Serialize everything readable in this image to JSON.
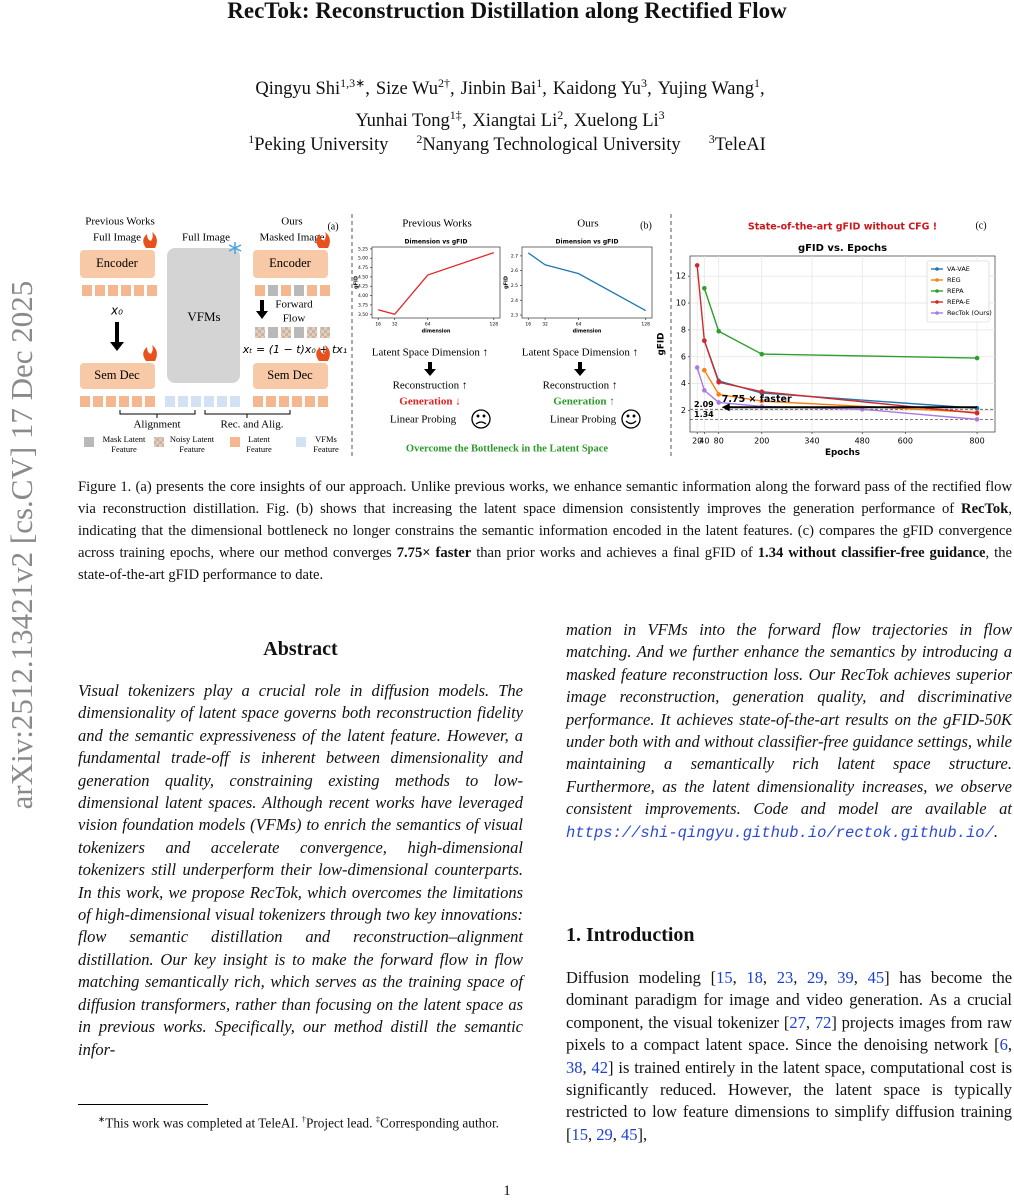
{
  "side_stamp": "arXiv:2512.13421v2  [cs.CV]  17 Dec 2025",
  "header": {
    "title": "RecTok: Reconstruction Distillation along Rectified Flow",
    "author_lines": [
      [
        {
          "name": "Qingyu Shi",
          "sup": "1,3∗",
          "after": ","
        },
        {
          "name": "Size Wu",
          "sup": "2†",
          "after": ","
        },
        {
          "name": "Jinbin Bai",
          "sup": "1",
          "after": ","
        },
        {
          "name": "Kaidong Yu",
          "sup": "3",
          "after": ","
        },
        {
          "name": "Yujing Wang",
          "sup": "1",
          "after": ","
        }
      ],
      [
        {
          "name": "Yunhai Tong",
          "sup": "1‡",
          "after": ","
        },
        {
          "name": "Xiangtai Li",
          "sup": "2",
          "after": ","
        },
        {
          "name": "Xuelong Li",
          "sup": "3"
        }
      ]
    ],
    "affiliations": [
      {
        "sup": "1",
        "name": "Peking University"
      },
      {
        "sup": "2",
        "name": "Nanyang Technological University"
      },
      {
        "sup": "3",
        "name": "TeleAI"
      }
    ]
  },
  "figure": {
    "panel_a": {
      "tag": "(a)",
      "prev_title": "Previous Works",
      "prev_input": "Full Image",
      "encoder": "Encoder",
      "x0": "x₀",
      "sem_dec": "Sem Dec",
      "vfm_input": "Full Image",
      "vfms": "VFMs",
      "ours_title": "Ours",
      "ours_input": "Masked Image",
      "forward_flow": [
        "Forward",
        "Flow"
      ],
      "formula": "xₜ = (1 − t)x₀ + tx₁",
      "alignment": "Alignment",
      "rec_alig": "Rec. and Alig.",
      "legend": [
        [
          "Mask Latent",
          "Feature"
        ],
        [
          "Noisy Latent",
          "Feature"
        ],
        [
          "Latent",
          "Feature"
        ],
        [
          "VFMs",
          "Feature"
        ]
      ]
    },
    "panel_b": {
      "tag": "(b)",
      "left_title": "Previous Works",
      "right_title": "Ours",
      "dimension": "Latent Space Dimension ↑",
      "reconstruction": "Reconstruction ↑",
      "generation_down": "Generation ↓",
      "generation_up": "Generation ↑",
      "linear_probing": "Linear Probing",
      "footer": "Overcome the Bottleneck in the Latent Space"
    },
    "panel_c": {
      "tag": "(c)"
    },
    "caption": [
      {
        "text": "Figure 1. (a) presents the core insights of our approach. Unlike previous works, we enhance semantic information along the forward pass of the rectified flow via reconstruction distillation. Fig. (b) shows that increasing the latent space dimension consistently improves the generation performance of "
      },
      {
        "text": "RecTok",
        "bold": true
      },
      {
        "text": ", indicating that the dimensional bottleneck no longer constrains the semantic information encoded in the latent features. (c) compares the gFID convergence across training epochs, where our method converges "
      },
      {
        "text": "7.75× faster",
        "bold": true
      },
      {
        "text": " than prior works and achieves a final gFID of "
      },
      {
        "text": "1.34 without classifier-free guidance",
        "bold": true
      },
      {
        "text": ", the state-of-the-art gFID performance to date."
      }
    ]
  },
  "chart_data": [
    {
      "type": "line",
      "title": "Dimension vs gFID",
      "xlabel": "dimension",
      "ylabel": "gFID",
      "x": [
        16,
        32,
        64,
        128
      ],
      "series": [
        {
          "color": "#e3262b",
          "values": [
            3.62,
            3.5,
            4.55,
            5.15
          ]
        }
      ],
      "xlim": [
        10,
        134
      ],
      "xticks": [
        16,
        32,
        64,
        128
      ],
      "ylim": [
        3.4,
        5.3
      ],
      "yticks": [
        {
          "value": 3.5,
          "label": "3.50"
        },
        3.75,
        {
          "value": 4.0,
          "label": "4.00"
        },
        4.25,
        {
          "value": 4.5,
          "label": "4.50"
        },
        4.75,
        {
          "value": 5.0,
          "label": "5.00"
        },
        5.25
      ],
      "grid": false
    },
    {
      "type": "line",
      "title": "Dimension vs gFID",
      "xlabel": "dimension",
      "ylabel": "gFID",
      "x": [
        16,
        32,
        64,
        128
      ],
      "series": [
        {
          "color": "#1f77b4",
          "values": [
            2.72,
            2.64,
            2.58,
            2.33
          ]
        }
      ],
      "xlim": [
        10,
        134
      ],
      "xticks": [
        16,
        32,
        64,
        128
      ],
      "ylim": [
        2.28,
        2.76
      ],
      "yticks": [
        2.3,
        2.4,
        2.5,
        2.6,
        2.7
      ],
      "grid": false
    },
    {
      "type": "line",
      "title": "gFID vs. Epochs",
      "annotation": "State-of-the-art gFID without CFG !",
      "speedup_label": "7.75 × faster",
      "xlabel": "Epochs",
      "ylabel": "gFID",
      "legend": "upper right",
      "grid": true,
      "xlim": [
        0,
        850
      ],
      "xticks": [
        20,
        40,
        80,
        200,
        340,
        480,
        600,
        800
      ],
      "ylim": [
        0.4,
        13.5
      ],
      "yticks": [
        2,
        4,
        6,
        8,
        10,
        12
      ],
      "reference_lines": [
        2.09,
        1.34
      ],
      "series": [
        {
          "name": "VA-VAE",
          "color": "#1f77b4",
          "x": [
            40,
            80,
            200,
            800
          ],
          "values": [
            7.2,
            4.2,
            3.3,
            2.17
          ]
        },
        {
          "name": "REG",
          "color": "#ff7f0e",
          "x": [
            40,
            80,
            200,
            800
          ],
          "values": [
            5.0,
            3.2,
            2.7,
            1.86
          ]
        },
        {
          "name": "REPA",
          "color": "#2ca02c",
          "x": [
            40,
            80,
            200,
            800
          ],
          "values": [
            11.1,
            7.9,
            6.2,
            5.9
          ]
        },
        {
          "name": "REPA-E",
          "color": "#d62728",
          "x": [
            20,
            40,
            80,
            200,
            800
          ],
          "values": [
            12.8,
            7.2,
            4.1,
            3.4,
            1.8
          ]
        },
        {
          "name": "RecTok (Ours)",
          "color": "#a97be0",
          "x": [
            20,
            40,
            80,
            200,
            480,
            800
          ],
          "values": [
            5.2,
            3.5,
            2.6,
            2.3,
            2.09,
            1.34
          ]
        }
      ]
    }
  ],
  "abstract": {
    "heading": "Abstract",
    "left": [
      {
        "text": "Visual tokenizers play a crucial role in diffusion models. The dimensionality of latent space governs both reconstruction fidelity and the semantic expressiveness of the latent feature. However, a fundamental trade-off is inherent between dimensionality and generation quality, constraining existing methods to low-dimensional latent spaces. Although recent works have leveraged vision foundation models (VFMs) to enrich the semantics of visual tokenizers and accelerate convergence, high-dimensional tokenizers still underperform their low-dimensional counterparts. In this work, we propose RecTok, which overcomes the limitations of high-dimensional visual tokenizers through two key innovations: flow semantic distillation and reconstruction–alignment distillation. Our key insight is to make the forward flow in flow matching semantically rich, which serves as the training space of diffusion transformers, rather than focusing on the latent space as in previous works. Specifically, our method distill the semantic infor-"
      }
    ],
    "right": [
      {
        "text": "mation in VFMs into the forward flow trajectories in flow matching. And we further enhance the semantics by introducing a masked feature reconstruction loss. Our RecTok achieves superior image reconstruction, generation quality, and discriminative performance. It achieves state-of-the-art results on the gFID-50K under both with and without classifier-free guidance settings, while maintaining a semantically rich latent space structure. Furthermore, as the latent dimensionality increases, we observe consistent improvements. Code and model are available at "
      },
      {
        "text": "https://shi-qingyu.github.io/rectok.github.io/",
        "link": true
      },
      {
        "text": "."
      }
    ]
  },
  "introduction": {
    "heading": "1. Introduction",
    "text": [
      {
        "text": "Diffusion modeling ["
      },
      {
        "text": "15",
        "cite": true
      },
      {
        "text": ", "
      },
      {
        "text": "18",
        "cite": true
      },
      {
        "text": ", "
      },
      {
        "text": "23",
        "cite": true
      },
      {
        "text": ", "
      },
      {
        "text": "29",
        "cite": true
      },
      {
        "text": ", "
      },
      {
        "text": "39",
        "cite": true
      },
      {
        "text": ", "
      },
      {
        "text": "45",
        "cite": true
      },
      {
        "text": "] has become the dominant paradigm for image and video generation. As a crucial component, the visual tokenizer ["
      },
      {
        "text": "27",
        "cite": true
      },
      {
        "text": ", "
      },
      {
        "text": "72",
        "cite": true
      },
      {
        "text": "] projects images from raw pixels to a compact latent space. Since the denoising network ["
      },
      {
        "text": "6",
        "cite": true
      },
      {
        "text": ", "
      },
      {
        "text": "38",
        "cite": true
      },
      {
        "text": ", "
      },
      {
        "text": "42",
        "cite": true
      },
      {
        "text": "] is trained entirely in the latent space, computational cost is significantly reduced. However, the latent space is typically restricted to low feature dimensions to simplify diffusion training ["
      },
      {
        "text": "15",
        "cite": true
      },
      {
        "text": ", "
      },
      {
        "text": "29",
        "cite": true
      },
      {
        "text": ", "
      },
      {
        "text": "45",
        "cite": true
      },
      {
        "text": "],"
      }
    ]
  },
  "footnote": [
    {
      "text": "∗",
      "sup": true
    },
    {
      "text": "This work was completed at TeleAI. "
    },
    {
      "text": "†",
      "sup": true
    },
    {
      "text": "Project lead. "
    },
    {
      "text": "‡",
      "sup": true
    },
    {
      "text": "Corresponding author."
    }
  ],
  "page_number": "1"
}
